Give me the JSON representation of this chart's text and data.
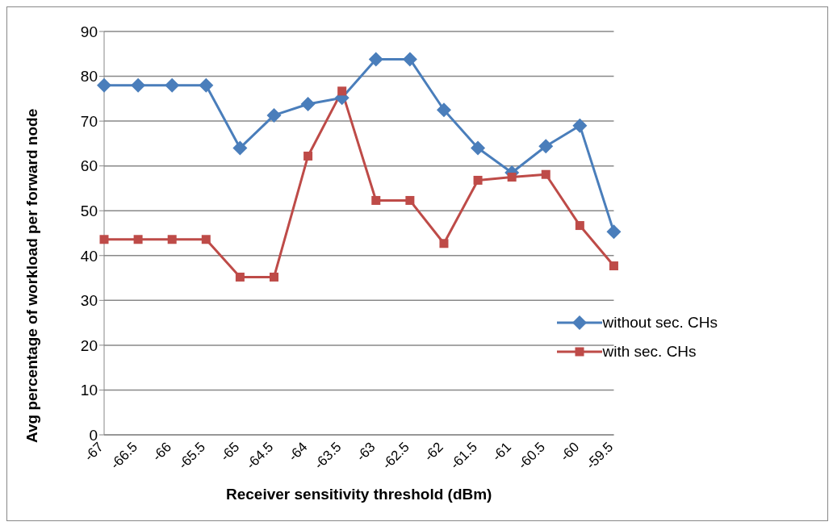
{
  "chart_data": {
    "type": "line",
    "xlabel": "Receiver sensitivity threshold (dBm)",
    "ylabel": "Avg percentage of workload per  forward node",
    "categories": [
      "-67",
      "-66.5",
      "-66",
      "-65.5",
      "-65",
      "-64.5",
      "-64",
      "-63.5",
      "-63",
      "-62.5",
      "-62",
      "-61.5",
      "-61",
      "-60.5",
      "-60",
      "-59.5"
    ],
    "series": [
      {
        "name": "without sec. CHs",
        "color": "#4a7ebb",
        "marker": "diamond",
        "values": [
          78,
          78,
          78,
          78,
          64,
          71.3,
          73.8,
          75.2,
          83.8,
          83.8,
          72.5,
          64,
          58.5,
          64.4,
          69,
          45.3
        ]
      },
      {
        "name": "with sec. CHs",
        "color": "#be4b48",
        "marker": "square",
        "values": [
          43.6,
          43.6,
          43.6,
          43.6,
          35.2,
          35.2,
          62.2,
          76.7,
          52.3,
          52.3,
          42.7,
          56.8,
          57.5,
          58.1,
          46.7,
          37.7
        ]
      }
    ],
    "ylim": [
      0,
      90
    ],
    "yticks": [
      0,
      10,
      20,
      30,
      40,
      50,
      60,
      70,
      80,
      90
    ],
    "grid": "y",
    "legend": "right",
    "line_style": "solid"
  }
}
